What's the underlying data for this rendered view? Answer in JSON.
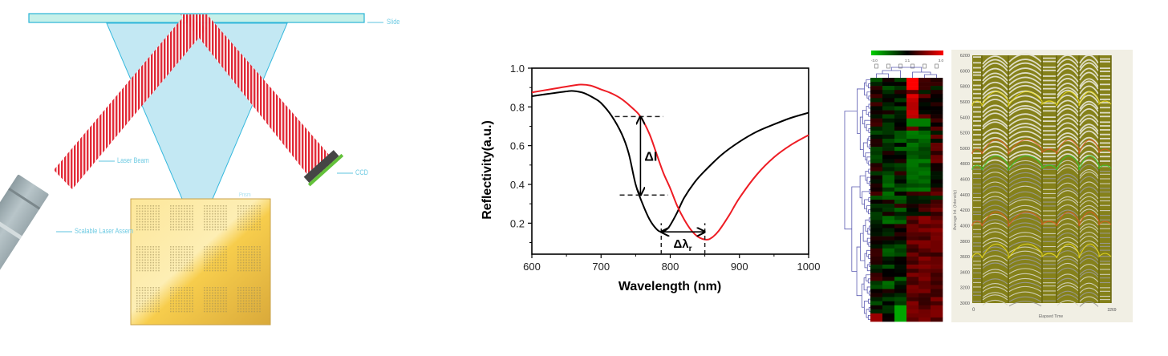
{
  "left_diagram": {
    "labels": {
      "slide": "Slide",
      "laser_beam": "Laser Beam",
      "ccd": "CCD",
      "laser_assembly": "Scalable Laser Assem",
      "chip": "Prism"
    },
    "colors": {
      "slide": "#c6f0e9",
      "slide_edge": "#2ab3d6",
      "cone": "#c3e8f3",
      "beam": "#e0202e",
      "chip": "#f6c944",
      "laser_body": "#a9b8bd",
      "ccd_body": "#454545",
      "ccd_sensor": "#63c13a"
    },
    "chip_grid": {
      "rows": 3,
      "cols": 4
    }
  },
  "chart_data": {
    "type": "line",
    "title": "",
    "xlabel": "Wavelength (nm)",
    "ylabel": "Reflectivity(a.u.)",
    "xlim": [
      600,
      1000
    ],
    "ylim": [
      0.04,
      1.0
    ],
    "xticks": [
      600,
      700,
      800,
      900,
      1000
    ],
    "xtick_labels": [
      "600",
      "700",
      "800",
      "900",
      "1000"
    ],
    "yticks": [
      0.2,
      0.4,
      0.6,
      0.8,
      1.0
    ],
    "ytick_labels": [
      "0.2",
      "0.4",
      "0.6",
      "0.8",
      "1.0"
    ],
    "grid": false,
    "legend": "none",
    "series": [
      {
        "name": "black",
        "color": "#000000",
        "x": [
          600,
          625,
          650,
          660,
          675,
          690,
          700,
          715,
          730,
          740,
          750,
          760,
          770,
          780,
          787,
          795,
          800,
          810,
          820,
          835,
          850,
          875,
          900,
          925,
          950,
          975,
          1000
        ],
        "y": [
          0.855,
          0.868,
          0.88,
          0.882,
          0.872,
          0.845,
          0.82,
          0.755,
          0.66,
          0.56,
          0.4,
          0.3,
          0.22,
          0.17,
          0.155,
          0.168,
          0.19,
          0.255,
          0.33,
          0.41,
          0.47,
          0.555,
          0.62,
          0.672,
          0.71,
          0.744,
          0.77
        ]
      },
      {
        "name": "red",
        "color": "#ee1c24",
        "x": [
          600,
          625,
          650,
          670,
          685,
          700,
          715,
          730,
          745,
          757,
          770,
          780,
          790,
          800,
          810,
          820,
          830,
          840,
          852,
          860,
          870,
          885,
          900,
          925,
          950,
          975,
          1000
        ],
        "y": [
          0.875,
          0.89,
          0.905,
          0.915,
          0.91,
          0.89,
          0.87,
          0.84,
          0.795,
          0.75,
          0.66,
          0.56,
          0.46,
          0.38,
          0.29,
          0.22,
          0.165,
          0.13,
          0.115,
          0.125,
          0.16,
          0.24,
          0.33,
          0.45,
          0.54,
          0.605,
          0.655
        ]
      }
    ],
    "annotations": [
      {
        "type": "dashed-hline",
        "y": 0.75,
        "x_from": 720,
        "x_to": 790
      },
      {
        "type": "dashed-hline",
        "y": 0.345,
        "x_from": 727,
        "x_to": 797
      },
      {
        "type": "double-arrow",
        "x": 757,
        "y_from": 0.75,
        "y_to": 0.345,
        "label": "ΔI"
      },
      {
        "type": "dashed-vline",
        "x": 787,
        "y_from": 0.04,
        "y_to": 0.2
      },
      {
        "type": "dashed-vline",
        "x": 850,
        "y_from": 0.04,
        "y_to": 0.2
      },
      {
        "type": "arrow",
        "y": 0.155,
        "x_from": 787,
        "x_to": 850,
        "label": "Δλ",
        "label_sub": "r"
      }
    ]
  },
  "heatmap": {
    "colorbar": {
      "min_label": "-3.0",
      "mid_label": "1:1",
      "max_label": "3.0",
      "low_color": "#00d000",
      "mid_color": "#000000",
      "high_color": "#ff0000"
    },
    "columns": 6,
    "rows": 60
  },
  "trace_plot": {
    "ylabel": "Average Int. (Intensity)",
    "xlabel": "Elapsed Time",
    "x_min_label": "0",
    "x_max_label": "3269",
    "yticks": [
      "6200",
      "6000",
      "5800",
      "5600",
      "5400",
      "5200",
      "5000",
      "4800",
      "4600",
      "4400",
      "4200",
      "4000",
      "3800",
      "3600",
      "3400",
      "3200",
      "3000"
    ],
    "colors": {
      "background": "#f1efe4",
      "fill": "#85811a",
      "trace": "#9a9a9a",
      "highlight_1": "#f0e020",
      "highlight_2": "#e05a20",
      "highlight_3": "#30d030"
    }
  }
}
